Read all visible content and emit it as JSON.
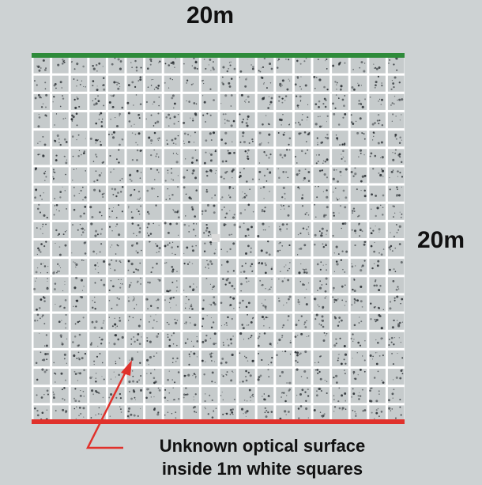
{
  "diagram": {
    "width_label": "20m",
    "height_label": "20m",
    "caption_line1": "Unknown optical surface",
    "caption_line2": "inside 1m white squares",
    "grid_cells_per_side": 20,
    "colors": {
      "background": "#cdd2d3",
      "cell_fill": "#c6cbcc",
      "grid_line": "#ffffff",
      "top_edge": "#2e8b3a",
      "bottom_edge": "#e0312b",
      "arrow": "#e0312b",
      "speckle": "#2a2f33",
      "center_marker": "#dcdcdc"
    }
  }
}
